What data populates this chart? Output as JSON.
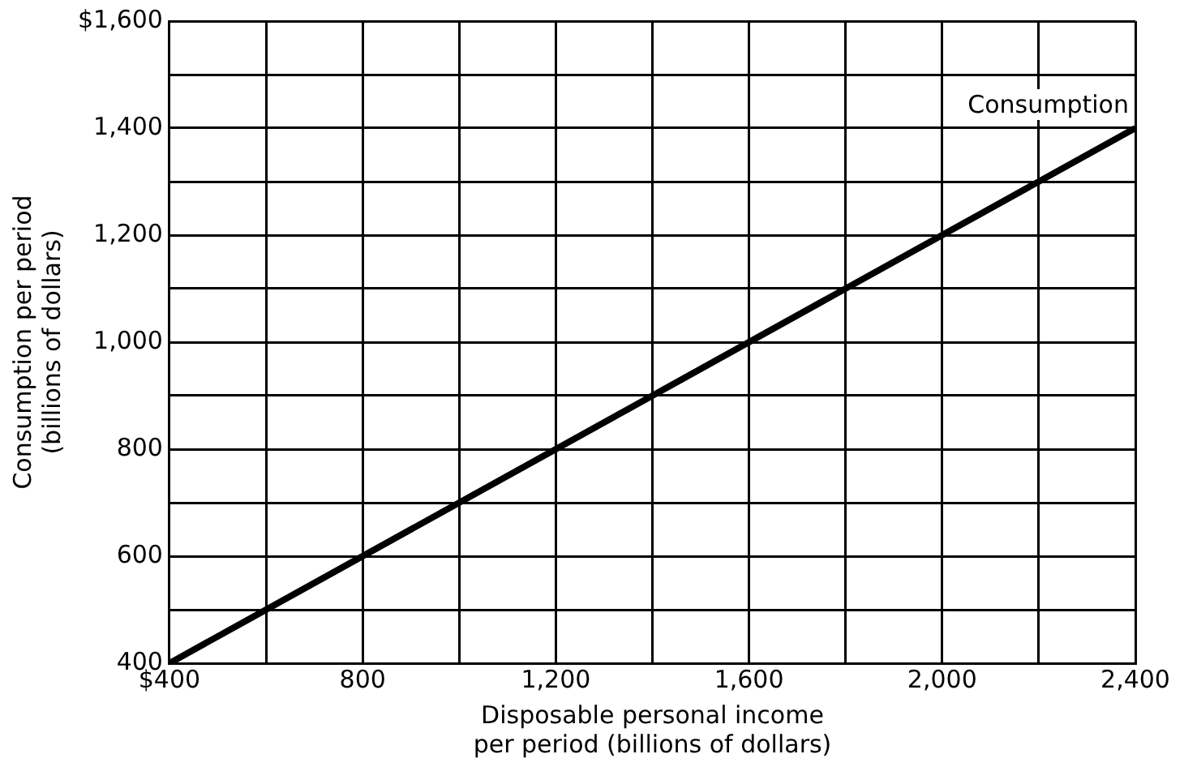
{
  "chart_data": {
    "type": "line",
    "xlabel": "Disposable personal income\nper period (billions of dollars)",
    "ylabel": "Consumption per period\n(billions of dollars)",
    "x": [
      400,
      2400
    ],
    "series": [
      {
        "name": "Consumption",
        "color": "#000000",
        "values": [
          400,
          1400
        ]
      }
    ],
    "xlim": [
      400,
      2400
    ],
    "xticks": [
      {
        "value": 400,
        "label": "$400"
      },
      {
        "value": 600,
        "label": null
      },
      {
        "value": 800,
        "label": "800"
      },
      {
        "value": 1000,
        "label": null
      },
      {
        "value": 1200,
        "label": "1,200"
      },
      {
        "value": 1400,
        "label": null
      },
      {
        "value": 1600,
        "label": "1,600"
      },
      {
        "value": 1800,
        "label": null
      },
      {
        "value": 2000,
        "label": "2,000"
      },
      {
        "value": 2200,
        "label": null
      },
      {
        "value": 2400,
        "label": "2,400"
      }
    ],
    "ylim": [
      400,
      1600
    ],
    "yticks": [
      {
        "value": 400,
        "label": "400"
      },
      {
        "value": 500,
        "label": null
      },
      {
        "value": 600,
        "label": "600"
      },
      {
        "value": 700,
        "label": null
      },
      {
        "value": 800,
        "label": "800"
      },
      {
        "value": 900,
        "label": null
      },
      {
        "value": 1000,
        "label": "1,000"
      },
      {
        "value": 1100,
        "label": null
      },
      {
        "value": 1200,
        "label": "1,200"
      },
      {
        "value": 1300,
        "label": null
      },
      {
        "value": 1400,
        "label": "1,400"
      },
      {
        "value": 1500,
        "label": null
      },
      {
        "value": 1600,
        "label": "$1,600"
      }
    ],
    "grid": true,
    "legend": false,
    "marker": "none",
    "line_style": "solid"
  }
}
